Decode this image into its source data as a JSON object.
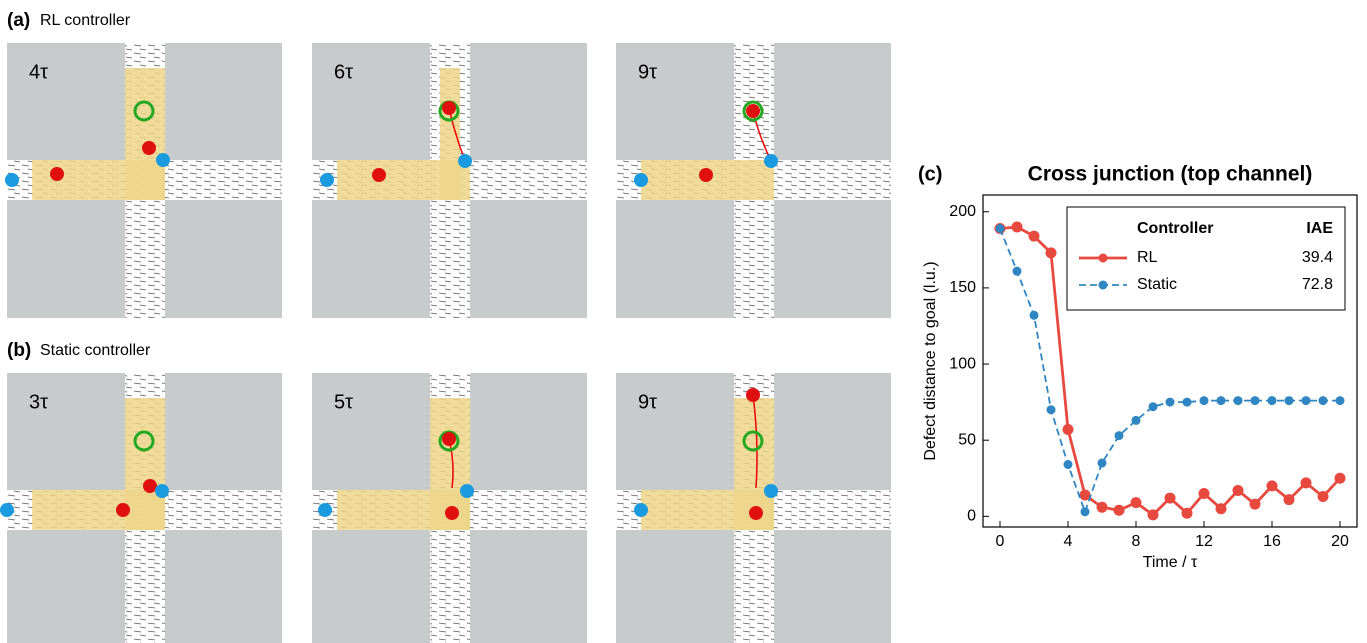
{
  "panels": [
    {
      "label": "(a)",
      "title": "RL controller",
      "times": [
        "4τ",
        "6τ",
        "9τ"
      ]
    },
    {
      "label": "(b)",
      "title": "Static controller",
      "times": [
        "3τ",
        "5τ",
        "9τ"
      ]
    }
  ],
  "chart_data": {
    "type": "line",
    "label": "(c)",
    "title": "Cross junction (top channel)",
    "xlabel": "Time / τ",
    "ylabel": "Defect distance to goal (l.u.)",
    "x": [
      0,
      1,
      2,
      3,
      4,
      5,
      6,
      7,
      8,
      9,
      10,
      11,
      12,
      13,
      14,
      15,
      16,
      17,
      18,
      19,
      20
    ],
    "xlim": [
      -1,
      21
    ],
    "ylim": [
      -7,
      211
    ],
    "xticks": [
      0,
      4,
      8,
      12,
      16,
      20
    ],
    "yticks": [
      0,
      50,
      100,
      150,
      200
    ],
    "legend": {
      "position": "upper right",
      "headers": [
        "Controller",
        "IAE"
      ]
    },
    "series": [
      {
        "name": "RL",
        "color": "#e8493f",
        "dash": "solid",
        "iae": 39.4,
        "values": [
          189,
          190,
          184,
          173,
          57,
          14,
          6,
          4,
          9,
          1,
          12,
          2,
          15,
          5,
          17,
          8,
          20,
          11,
          22,
          13,
          25
        ]
      },
      {
        "name": "Static",
        "color": "#2f86c3",
        "dash": "dashed",
        "iae": 72.8,
        "values": [
          189,
          161,
          132,
          70,
          34,
          3,
          35,
          53,
          63,
          72,
          75,
          75,
          76,
          76,
          76,
          76,
          76,
          76,
          76,
          76,
          76
        ]
      }
    ]
  }
}
